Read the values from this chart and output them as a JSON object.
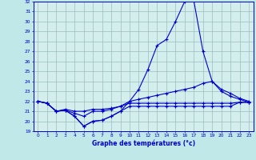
{
  "xlabel": "Graphe des températures (°c)",
  "hours": [
    0,
    1,
    2,
    3,
    4,
    5,
    6,
    7,
    8,
    9,
    10,
    11,
    12,
    13,
    14,
    15,
    16,
    17,
    18,
    19,
    20,
    21,
    22,
    23
  ],
  "line_peak": [
    22.0,
    21.8,
    21.0,
    21.1,
    20.5,
    19.5,
    20.0,
    20.1,
    20.5,
    21.0,
    22.0,
    23.2,
    25.2,
    27.6,
    28.2,
    30.0,
    32.0,
    32.1,
    27.0,
    24.0,
    23.0,
    22.5,
    22.2,
    21.9
  ],
  "line_gradual": [
    22.0,
    21.8,
    21.0,
    21.1,
    20.8,
    20.5,
    21.0,
    21.0,
    21.2,
    21.5,
    22.0,
    22.2,
    22.4,
    22.6,
    22.8,
    23.0,
    23.2,
    23.4,
    23.8,
    24.0,
    23.2,
    22.8,
    22.3,
    22.0
  ],
  "line_flat": [
    22.0,
    21.8,
    21.0,
    21.2,
    21.0,
    21.0,
    21.2,
    21.2,
    21.3,
    21.5,
    21.8,
    21.8,
    21.8,
    21.8,
    21.8,
    21.8,
    21.8,
    21.8,
    21.8,
    21.8,
    21.8,
    21.8,
    21.9,
    21.9
  ],
  "line_dip": [
    22.0,
    21.8,
    21.0,
    21.1,
    20.5,
    19.5,
    20.0,
    20.1,
    20.5,
    21.0,
    21.5,
    21.5,
    21.5,
    21.5,
    21.5,
    21.5,
    21.5,
    21.5,
    21.5,
    21.5,
    21.5,
    21.5,
    21.9,
    21.9
  ],
  "ylim": [
    19,
    32
  ],
  "yticks": [
    19,
    20,
    21,
    22,
    23,
    24,
    25,
    26,
    27,
    28,
    29,
    30,
    31,
    32
  ],
  "xlim": [
    -0.5,
    23.5
  ],
  "line_color": "#0000cc",
  "bg_color": "#c0e8e8",
  "plot_bg": "#d4eeee",
  "grid_color": "#9bbcbc",
  "marker": "+"
}
